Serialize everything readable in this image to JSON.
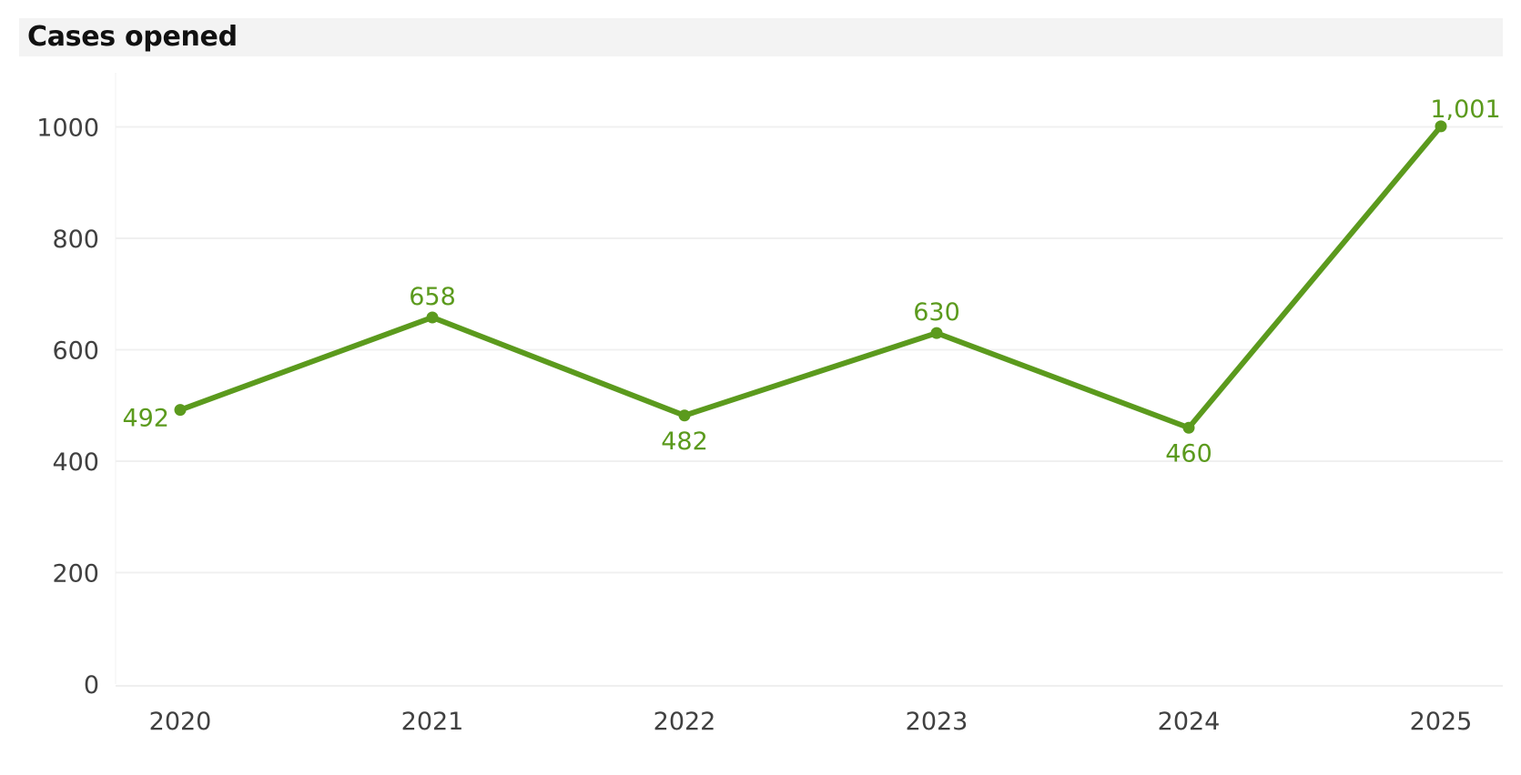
{
  "chart_data": {
    "type": "line",
    "title": "Cases opened",
    "xlabel": "",
    "ylabel": "",
    "categories": [
      "2020",
      "2021",
      "2022",
      "2023",
      "2024",
      "2025"
    ],
    "series": [
      {
        "values": [
          492,
          658,
          482,
          630,
          460,
          1001
        ],
        "data_labels": [
          "492",
          "658",
          "482",
          "630",
          "460",
          "1,001"
        ],
        "color": "#5b9a1d"
      }
    ],
    "ylim": [
      0,
      1100
    ],
    "yticks": [
      "0",
      "200",
      "400",
      "600",
      "800",
      "1000"
    ],
    "grid": true,
    "legend": "none"
  }
}
